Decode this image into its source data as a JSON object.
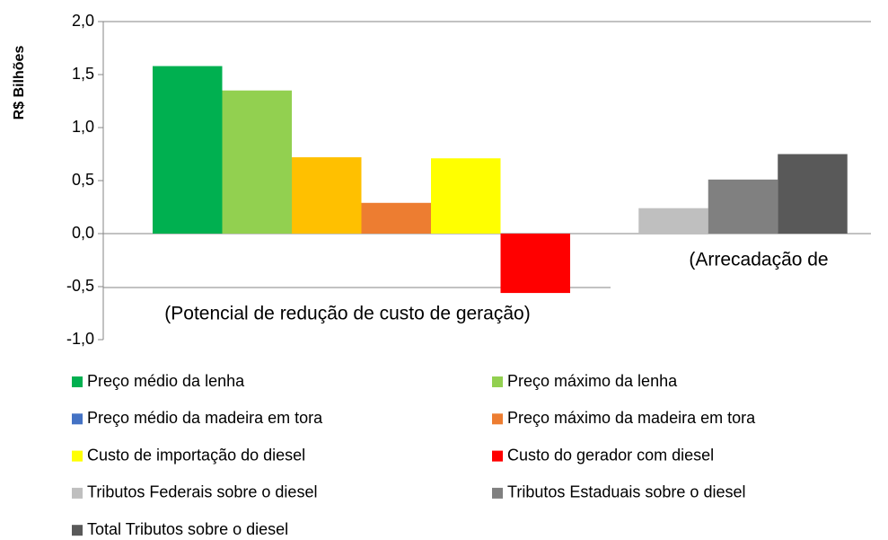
{
  "chart_data": {
    "type": "bar",
    "y_label": "R$ Bilhões",
    "categories": [
      "(Potencial de redução de custo de geração)",
      "(Arrecadação de"
    ],
    "series": [
      {
        "name": "Preço médio da lenha",
        "color": "#00b050",
        "values": [
          1.58,
          null
        ]
      },
      {
        "name": "Preço máximo da lenha",
        "color": "#92d050",
        "values": [
          1.35,
          null
        ]
      },
      {
        "name": "Preço médio da madeira em tora",
        "color": "#4472c4",
        "bar_color": "#ffc000",
        "values": [
          0.72,
          null
        ]
      },
      {
        "name": "Preço máximo da madeira em tora",
        "color": "#ed7d31",
        "values": [
          0.29,
          null
        ]
      },
      {
        "name": "Custo de importação do diesel",
        "color": "#ffff00",
        "values": [
          0.71,
          null
        ]
      },
      {
        "name": "Custo do gerador com diesel",
        "color": "#ff0000",
        "values": [
          -0.56,
          null
        ]
      },
      {
        "name": "Tributos Federais sobre o diesel",
        "color": "#bfbfbf",
        "values": [
          null,
          0.24
        ]
      },
      {
        "name": "Tributos Estaduais sobre o diesel",
        "color": "#808080",
        "values": [
          null,
          0.51
        ]
      },
      {
        "name": "Total Tributos sobre o diesel",
        "color": "#595959",
        "values": [
          null,
          0.75
        ]
      }
    ],
    "ylim": [
      -1.0,
      2.0
    ],
    "yticks": [
      {
        "value": -1.0,
        "label": "-1,0"
      },
      {
        "value": -0.5,
        "label": "-0,5"
      },
      {
        "value": 0.0,
        "label": "0,0"
      },
      {
        "value": 0.5,
        "label": "0,5"
      },
      {
        "value": 1.0,
        "label": "1,0"
      },
      {
        "value": 1.5,
        "label": "1,5"
      },
      {
        "value": 2.0,
        "label": "2,0"
      }
    ]
  }
}
